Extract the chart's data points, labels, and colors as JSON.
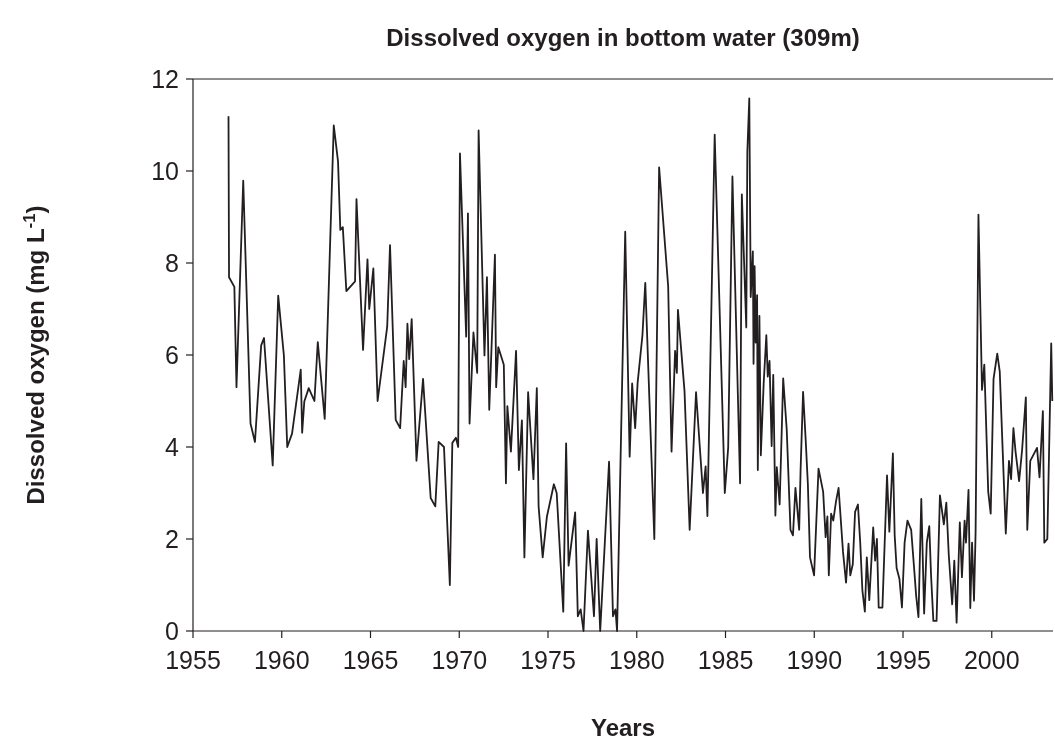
{
  "chart_data": {
    "type": "line",
    "title": "Dissolved oxygen in bottom water (309m)",
    "xlabel": "Years",
    "ylabel": "Dissolved oxygen (mg L$^{-1}$)",
    "xlim": [
      1955,
      2003.45
    ],
    "ylim": [
      0,
      12
    ],
    "xticks": [
      1955,
      1960,
      1965,
      1970,
      1975,
      1980,
      1985,
      1990,
      1995,
      2000
    ],
    "yticks": [
      0,
      2,
      4,
      6,
      8,
      10,
      12
    ],
    "grid": false,
    "marker": "none",
    "line_style": "solid",
    "series": [
      {
        "color": "#231f20",
        "x": [
          1957.0,
          1957.03,
          1957.33,
          1957.45,
          1957.83,
          1958.24,
          1958.49,
          1958.84,
          1959.0,
          1959.49,
          1959.8,
          1960.12,
          1960.31,
          1960.58,
          1961.07,
          1961.15,
          1961.27,
          1961.52,
          1961.84,
          1962.03,
          1962.42,
          1962.93,
          1963.17,
          1963.3,
          1963.44,
          1963.64,
          1964.13,
          1964.21,
          1964.58,
          1964.83,
          1964.93,
          1965.16,
          1965.4,
          1965.94,
          1966.1,
          1966.42,
          1966.67,
          1966.87,
          1966.98,
          1967.08,
          1967.18,
          1967.32,
          1967.59,
          1967.96,
          1968.39,
          1968.65,
          1968.84,
          1969.14,
          1969.47,
          1969.61,
          1969.81,
          1969.94,
          1970.04,
          1970.39,
          1970.49,
          1970.58,
          1970.8,
          1971.01,
          1971.09,
          1971.42,
          1971.56,
          1971.69,
          1972.01,
          1972.08,
          1972.2,
          1972.51,
          1972.63,
          1972.71,
          1972.91,
          1973.2,
          1973.36,
          1973.53,
          1973.67,
          1973.88,
          1974.18,
          1974.37,
          1974.47,
          1974.7,
          1974.94,
          1975.33,
          1975.49,
          1975.86,
          1976.02,
          1976.16,
          1976.53,
          1976.68,
          1976.84,
          1977.0,
          1977.25,
          1977.59,
          1977.74,
          1977.94,
          1978.44,
          1978.66,
          1978.8,
          1978.89,
          1979.35,
          1979.6,
          1979.74,
          1979.91,
          1980.05,
          1980.32,
          1980.48,
          1980.99,
          1981.26,
          1981.77,
          1981.96,
          1982.16,
          1982.26,
          1982.32,
          1982.69,
          1982.98,
          1983.34,
          1983.73,
          1983.88,
          1983.98,
          1984.39,
          1984.96,
          1985.15,
          1985.39,
          1985.82,
          1985.92,
          1986.17,
          1986.23,
          1986.34,
          1986.42,
          1986.54,
          1986.58,
          1986.64,
          1986.7,
          1986.78,
          1986.82,
          1986.91,
          1986.99,
          1987.15,
          1987.3,
          1987.38,
          1987.48,
          1987.6,
          1987.69,
          1987.81,
          1987.89,
          1988.05,
          1988.25,
          1988.45,
          1988.66,
          1988.8,
          1988.94,
          1989.15,
          1989.23,
          1989.37,
          1989.52,
          1989.64,
          1989.76,
          1989.99,
          1990.24,
          1990.5,
          1990.64,
          1990.74,
          1990.82,
          1990.95,
          1991.07,
          1991.23,
          1991.37,
          1991.62,
          1991.79,
          1991.93,
          1992.03,
          1992.17,
          1992.3,
          1992.46,
          1992.59,
          1992.71,
          1992.85,
          1992.96,
          1993.1,
          1993.32,
          1993.43,
          1993.53,
          1993.63,
          1993.84,
          1994.1,
          1994.23,
          1994.43,
          1994.53,
          1994.64,
          1994.8,
          1994.94,
          1995.09,
          1995.25,
          1995.46,
          1995.64,
          1995.74,
          1995.87,
          1996.03,
          1996.19,
          1996.34,
          1996.48,
          1996.58,
          1996.71,
          1996.89,
          1997.08,
          1997.3,
          1997.44,
          1997.58,
          1997.77,
          1997.89,
          1998.02,
          1998.2,
          1998.32,
          1998.47,
          1998.55,
          1998.69,
          1998.79,
          1998.89,
          1999.0,
          1999.09,
          1999.25,
          1999.45,
          1999.58,
          1999.8,
          1999.94,
          2000.1,
          2000.31,
          2000.45,
          2000.61,
          2000.79,
          2000.97,
          2001.09,
          2001.22,
          2001.34,
          2001.54,
          2001.71,
          2001.92,
          2002.0,
          2002.17,
          2002.55,
          2002.69,
          2002.88,
          2002.96,
          2003.13,
          2003.35,
          2003.41
        ],
        "values": [
          11.19,
          7.69,
          7.48,
          5.3,
          9.79,
          4.51,
          4.11,
          6.21,
          6.37,
          3.6,
          7.29,
          5.99,
          4.0,
          4.29,
          5.68,
          4.31,
          4.99,
          5.28,
          5.0,
          6.28,
          4.61,
          10.99,
          10.21,
          8.72,
          8.78,
          7.39,
          7.6,
          9.39,
          6.11,
          8.08,
          7.0,
          7.88,
          5.0,
          6.61,
          8.39,
          4.59,
          4.41,
          5.87,
          5.3,
          6.68,
          5.91,
          6.78,
          3.7,
          5.48,
          2.89,
          2.71,
          4.11,
          4.0,
          1.0,
          4.09,
          4.2,
          4.0,
          10.38,
          6.4,
          9.08,
          4.51,
          6.49,
          5.61,
          10.88,
          5.99,
          7.69,
          4.81,
          8.18,
          5.3,
          6.17,
          5.79,
          3.21,
          4.89,
          3.9,
          6.09,
          3.5,
          4.58,
          1.6,
          5.19,
          3.3,
          5.28,
          2.71,
          1.6,
          2.49,
          3.19,
          3.0,
          0.42,
          4.08,
          1.42,
          2.58,
          0.32,
          0.47,
          0,
          2.18,
          0.32,
          2.0,
          0,
          3.68,
          0.32,
          0.47,
          0,
          8.68,
          3.79,
          5.38,
          4.41,
          5.4,
          6.43,
          7.57,
          2.0,
          10.08,
          7.49,
          3.9,
          6.09,
          5.61,
          6.98,
          5.22,
          2.2,
          5.19,
          3.0,
          3.58,
          2.5,
          10.79,
          3.0,
          3.98,
          9.88,
          3.21,
          9.49,
          6.6,
          10.42,
          11.58,
          7.26,
          8.25,
          5.81,
          7.93,
          6.27,
          7.3,
          3.5,
          6.85,
          3.82,
          5.38,
          6.43,
          5.53,
          5.87,
          4.02,
          5.57,
          2.51,
          3.56,
          2.75,
          5.49,
          4.37,
          2.2,
          2.08,
          3.11,
          2.2,
          3.5,
          5.2,
          4.13,
          3.19,
          1.6,
          1.21,
          3.53,
          3.03,
          2.04,
          2.49,
          1.21,
          2.55,
          2.4,
          2.83,
          3.11,
          1.72,
          1.05,
          1.9,
          1.21,
          1.45,
          2.59,
          2.75,
          1.92,
          0.89,
          0.42,
          1.6,
          0.67,
          2.25,
          1.53,
          2.0,
          0.51,
          0.51,
          3.38,
          2.16,
          3.86,
          2.08,
          1.37,
          1.13,
          0.51,
          1.92,
          2.4,
          2.2,
          1.29,
          0.77,
          0.3,
          2.87,
          0.38,
          1.92,
          2.28,
          1.21,
          0.22,
          0.22,
          2.95,
          2.32,
          2.79,
          1.64,
          0.58,
          1.53,
          0.18,
          2.36,
          1.17,
          2.4,
          1.92,
          3.07,
          0.5,
          1.92,
          0.66,
          2.16,
          9.05,
          5.24,
          5.79,
          3.03,
          2.55,
          5.48,
          6.03,
          5.64,
          3.98,
          2.12,
          3.7,
          3.3,
          4.41,
          3.9,
          3.26,
          3.94,
          5.08,
          2.2,
          3.7,
          3.98,
          3.34,
          4.78,
          1.92,
          2.0,
          6.25,
          5.0
        ]
      }
    ]
  }
}
